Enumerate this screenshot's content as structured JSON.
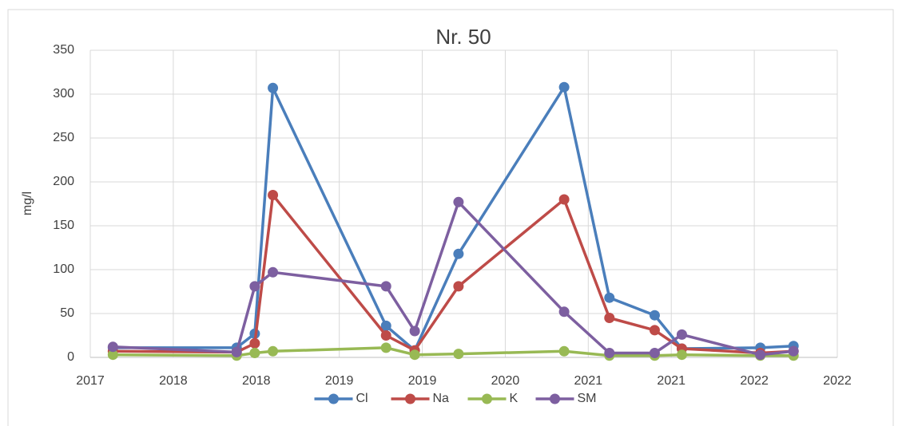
{
  "chart_data": {
    "type": "line",
    "title": "Nr. 50",
    "y_label": "mg/l",
    "x": [
      2017.6,
      2018.42,
      2018.54,
      2018.66,
      2019.41,
      2019.6,
      2019.89,
      2020.59,
      2020.89,
      2021.19,
      2021.37,
      2021.89,
      2022.11
    ],
    "series": [
      {
        "name": "Cl",
        "color": "#4a7ebb",
        "values": [
          11,
          11,
          27,
          307,
          36,
          8,
          118,
          308,
          68,
          48,
          10,
          11,
          13
        ]
      },
      {
        "name": "Na",
        "color": "#be4b48",
        "values": [
          7,
          6,
          16,
          185,
          25,
          8,
          81,
          180,
          45,
          31,
          10,
          5,
          7
        ]
      },
      {
        "name": "K",
        "color": "#98b954",
        "values": [
          3,
          2,
          5,
          7,
          11,
          3,
          4,
          7,
          2,
          2,
          3,
          2,
          2
        ]
      },
      {
        "name": "SM",
        "color": "#7d5fa0",
        "values": [
          12,
          6,
          81,
          97,
          81,
          30,
          177,
          52,
          5,
          5,
          26,
          3,
          7
        ]
      }
    ],
    "xlim": [
      2017.45,
      2022.4
    ],
    "xticks": [
      {
        "value": 2017.45,
        "label": "2017"
      },
      {
        "value": 2018.0,
        "label": "2018"
      },
      {
        "value": 2018.55,
        "label": "2018"
      },
      {
        "value": 2019.1,
        "label": "2019"
      },
      {
        "value": 2019.65,
        "label": "2019"
      },
      {
        "value": 2020.2,
        "label": "2020"
      },
      {
        "value": 2020.75,
        "label": "2021"
      },
      {
        "value": 2021.3,
        "label": "2021"
      },
      {
        "value": 2021.85,
        "label": "2022"
      },
      {
        "value": 2022.4,
        "label": "2022"
      }
    ],
    "ylim": [
      0,
      350
    ],
    "yticks": [
      0,
      50,
      100,
      150,
      200,
      250,
      300,
      350
    ],
    "grid": true,
    "legend": "bottom"
  }
}
